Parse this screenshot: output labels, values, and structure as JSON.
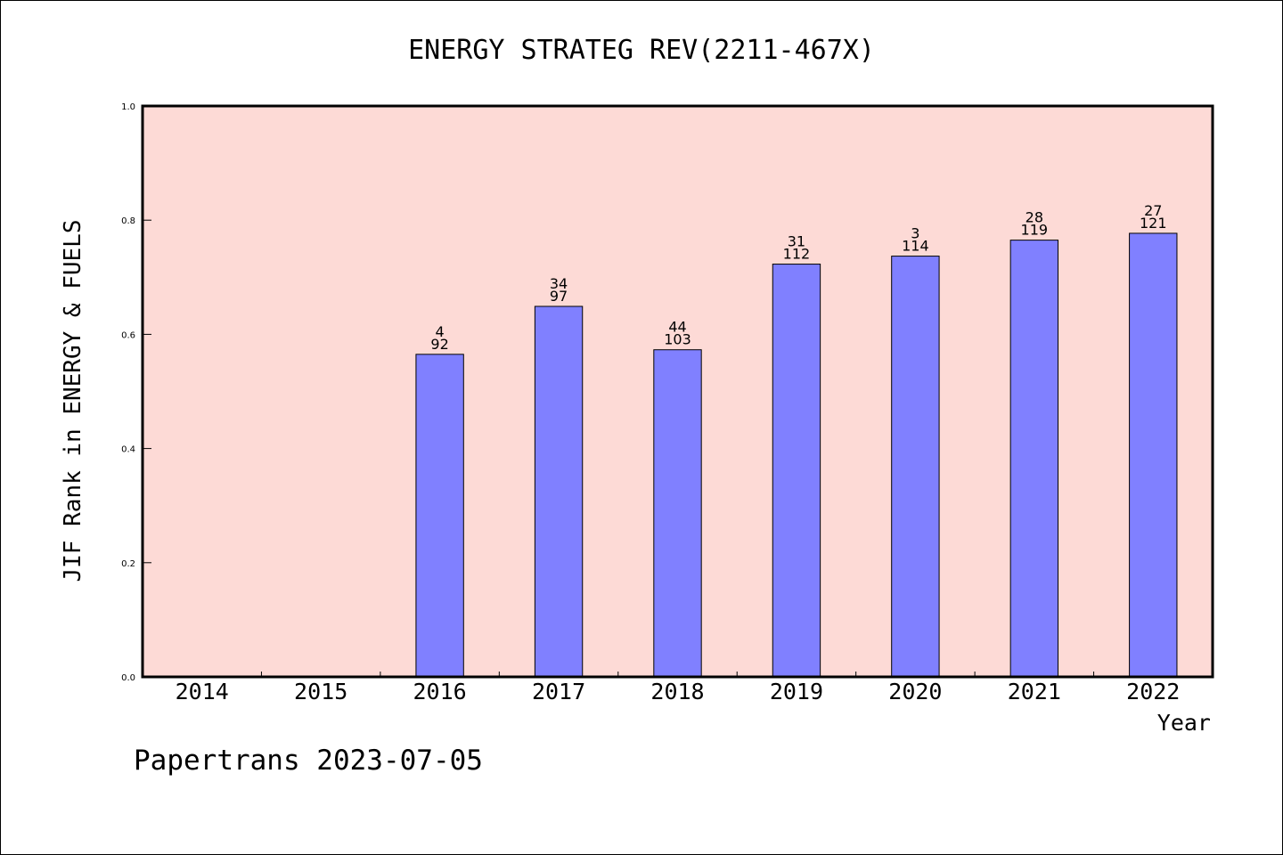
{
  "chart_data": {
    "type": "bar",
    "title": "ENERGY STRATEG REV(2211-467X)",
    "xlabel": "Year",
    "ylabel": "JIF Rank in ENERGY & FUELS",
    "ylim": [
      0,
      1.0
    ],
    "yticks": [
      "0.0",
      "0.2",
      "0.4",
      "0.6",
      "0.8",
      "1.0"
    ],
    "categories": [
      "2014",
      "2015",
      "2016",
      "2017",
      "2018",
      "2019",
      "2020",
      "2021",
      "2022"
    ],
    "values": [
      null,
      null,
      0.565,
      0.649,
      0.573,
      0.723,
      0.737,
      0.765,
      0.777
    ],
    "rank_labels": [
      "",
      "",
      "4",
      "34",
      "44",
      "31",
      "3",
      "28",
      "27"
    ],
    "total_labels": [
      "",
      "",
      "92",
      "97",
      "103",
      "112",
      "114",
      "119",
      "121"
    ],
    "grid": false,
    "colors": {
      "plot_background": "#fddad6",
      "bar_fill": "#8080ff",
      "bar_stroke": "#000000"
    }
  },
  "footer": "Papertrans 2023-07-05"
}
